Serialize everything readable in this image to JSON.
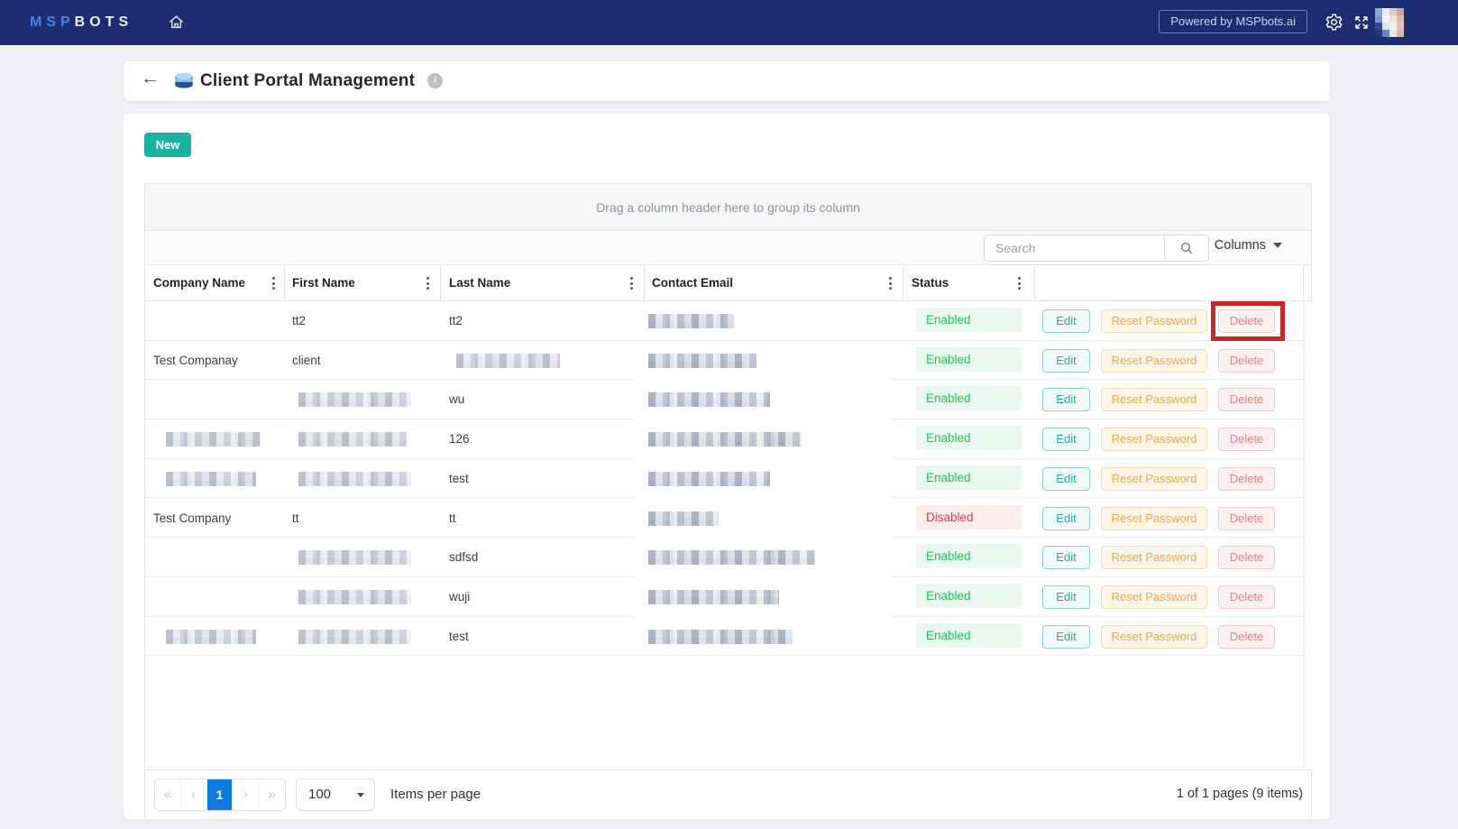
{
  "navbar": {
    "brand_msp": "MSP",
    "brand_bots": "BOTS",
    "powered_by": "Powered by MSPbots.ai"
  },
  "header": {
    "back_arrow": "←",
    "title": "Client Portal Management",
    "info_glyph": "i"
  },
  "toolbar": {
    "new_label": "New"
  },
  "grid": {
    "group_hint": "Drag a column header here to group its column",
    "search_placeholder": "Search",
    "columns_label": "Columns",
    "columns": [
      "Company Name",
      "First Name",
      "Last Name",
      "Contact Email",
      "Status"
    ],
    "actions": {
      "edit": "Edit",
      "reset": "Reset Password",
      "delete": "Delete"
    },
    "rows": [
      {
        "company": {
          "text": ""
        },
        "first": {
          "text": "tt2"
        },
        "last": {
          "text": "tt2"
        },
        "email_redacted_width": 95,
        "status": "Enabled",
        "delete_highlighted": true
      },
      {
        "company": {
          "text": "Test Companay"
        },
        "first": {
          "text": "client"
        },
        "last": {
          "redacted_width": 115
        },
        "email_redacted_width": 120,
        "status": "Enabled"
      },
      {
        "company": {
          "text": ""
        },
        "first": {
          "redacted_width": 125
        },
        "last": {
          "text": "wu"
        },
        "email_redacted_width": 135,
        "status": "Enabled"
      },
      {
        "company": {
          "redacted_width": 105
        },
        "first": {
          "redacted_width": 120
        },
        "last": {
          "text": "126"
        },
        "email_redacted_width": 170,
        "status": "Enabled"
      },
      {
        "company": {
          "redacted_width": 100
        },
        "first": {
          "redacted_width": 125
        },
        "last": {
          "text": "test"
        },
        "email_redacted_width": 135,
        "status": "Enabled"
      },
      {
        "company": {
          "text": "Test Company"
        },
        "first": {
          "text": "tt"
        },
        "last": {
          "text": "tt"
        },
        "email_redacted_width": 78,
        "status": "Disabled"
      },
      {
        "company": {
          "text": ""
        },
        "first": {
          "redacted_width": 125
        },
        "last": {
          "text": "sdfsd"
        },
        "email_redacted_width": 185,
        "status": "Enabled"
      },
      {
        "company": {
          "text": ""
        },
        "first": {
          "redacted_width": 125
        },
        "last": {
          "text": "wuji"
        },
        "email_redacted_width": 145,
        "status": "Enabled"
      },
      {
        "company": {
          "redacted_width": 100
        },
        "first": {
          "redacted_width": 125
        },
        "last": {
          "text": "test"
        },
        "email_redacted_width": 160,
        "status": "Enabled"
      }
    ]
  },
  "pagination": {
    "first": "«",
    "prev": "‹",
    "page": "1",
    "next": "›",
    "last": "»",
    "page_size": "100",
    "items_per_page": "Items per page",
    "summary": "1 of 1 pages (9 items)"
  },
  "colors": {
    "navbar": "#1c2d74",
    "accent_teal": "#19b3a2",
    "enabled_text": "#28c258",
    "disabled_text": "#e23c3c",
    "highlight_red": "#cb2424",
    "page_button_blue": "#0f7be0"
  }
}
